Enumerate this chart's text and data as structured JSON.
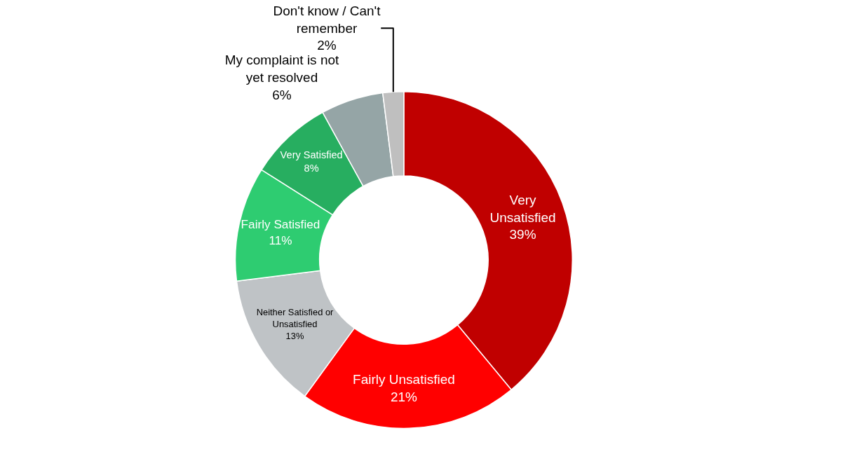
{
  "chart_data": {
    "type": "donut",
    "categories": [
      "Very\nUnsatisfied",
      "Fairly Unsatisfied",
      "Neither Satisfied or\nUnsatisfied",
      "Fairly Satisfied",
      "Very Satisfied",
      "My complaint is not\nyet resolved",
      "Don't know / Can't\nremember"
    ],
    "values": [
      39,
      21,
      13,
      11,
      8,
      6,
      2
    ],
    "colors": [
      "#c00000",
      "#ff0000",
      "#bfc3c6",
      "#2ecc71",
      "#27ae60",
      "#95a5a6",
      "#bfbfbf"
    ],
    "value_labels": [
      "39%",
      "21%",
      "13%",
      "11%",
      "8%",
      "6%",
      "2%"
    ],
    "legend": false
  }
}
